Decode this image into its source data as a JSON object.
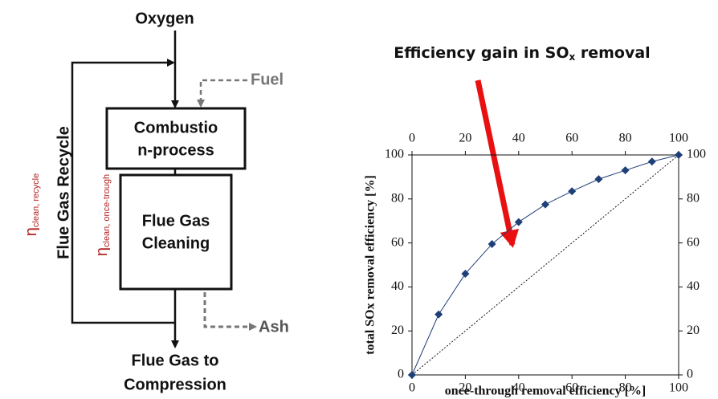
{
  "diagram": {
    "oxygen": "Oxygen",
    "fuel": "Fuel",
    "combustion": [
      "Combustio",
      "n-process"
    ],
    "cleaning": [
      "Flue Gas",
      "Cleaning"
    ],
    "ash": "Ash",
    "output": [
      "Flue Gas to",
      "Compression"
    ],
    "recycle": "Flue Gas Recycle",
    "eta_recycle": {
      "symbol": "η",
      "subscript": "clean, recycle"
    },
    "eta_once": {
      "symbol": "η",
      "subscript": "clean, once-trough"
    }
  },
  "chart_data": {
    "type": "line",
    "title": {
      "text": "Efficiency gain in SO",
      "subscript": "x",
      "suffix": " removal"
    },
    "x_label": "once-through removal efficiency [%]",
    "y_label": "total SOx removal efficiency [%]",
    "x": [
      0,
      10,
      20,
      30,
      40,
      50,
      60,
      70,
      80,
      90,
      100
    ],
    "values": [
      0,
      27.5,
      46,
      59.5,
      69.5,
      77.5,
      83.5,
      89,
      93,
      97,
      100
    ],
    "color": "#1f3f78",
    "xlim": [
      0,
      100
    ],
    "xticks": [
      0,
      20,
      40,
      60,
      80,
      100
    ],
    "ylim": [
      0,
      100
    ],
    "yticks": [
      0,
      20,
      40,
      60,
      80,
      100
    ],
    "y2lim": [
      0,
      100
    ],
    "y2ticks": [
      0,
      20,
      40,
      60,
      80,
      100
    ]
  }
}
